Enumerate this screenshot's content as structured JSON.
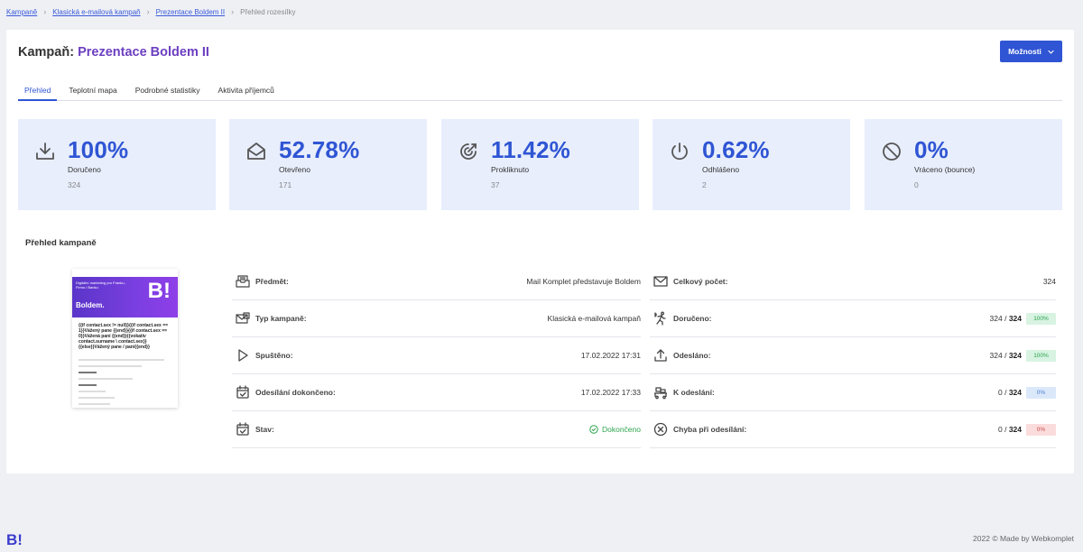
{
  "breadcrumb": {
    "items": [
      "Kampaně",
      "Klasická e-mailová kampaň",
      "Prezentace Boldem II"
    ],
    "current": "Přehled rozesílky"
  },
  "header": {
    "title_prefix": "Kampaň:",
    "campaign_name": "Prezentace Boldem II",
    "options_label": "Možnosti"
  },
  "tabs": [
    {
      "label": "Přehled",
      "active": true
    },
    {
      "label": "Teplotní mapa",
      "active": false
    },
    {
      "label": "Podrobné statistiky",
      "active": false
    },
    {
      "label": "Aktivita příjemců",
      "active": false
    }
  ],
  "stats": [
    {
      "icon": "download-icon",
      "percent": "100%",
      "label": "Doručeno",
      "count": "324"
    },
    {
      "icon": "envelope-open-icon",
      "percent": "52.78%",
      "label": "Otevřeno",
      "count": "171"
    },
    {
      "icon": "target-click-icon",
      "percent": "11.42%",
      "label": "Prokliknuto",
      "count": "37"
    },
    {
      "icon": "power-icon",
      "percent": "0.62%",
      "label": "Odhlášeno",
      "count": "2"
    },
    {
      "icon": "block-icon",
      "percent": "0%",
      "label": "Vráceno (bounce)",
      "count": "0"
    }
  ],
  "overview": {
    "section_title": "Přehled kampaně",
    "preview": {
      "banner_text": "Digitální marketing pro Franku, Firmu i Banku",
      "brand": "Boldem.",
      "logo": "B!",
      "body": "{{if contact.sex != null}}{{if contact.sex == 1}}Vážený pane {{end}}{{if contact.sex == 0}}Vážená paní {{end}}{{vokativ contact.surname \\ contact.sex}}{{else}}Vážený pane / paní{{end}}"
    },
    "left_rows": [
      {
        "icon": "envelope-tray-icon",
        "label": "Předmět:",
        "value": "Mail Komplet představuje Boldem"
      },
      {
        "icon": "envelope-card-icon",
        "label": "Typ kampaně:",
        "value": "Klasická e-mailová kampaň"
      },
      {
        "icon": "play-icon",
        "label": "Spuštěno:",
        "value": "17.02.2022 17:31"
      },
      {
        "icon": "calendar-check-icon",
        "label": "Odesílání dokončeno:",
        "value": "17.02.2022 17:33"
      },
      {
        "icon": "calendar-check-icon",
        "label": "Stav:",
        "value": "Dokončeno"
      }
    ],
    "right_rows": [
      {
        "icon": "envelope-icon",
        "label": "Celkový počet:",
        "value": "324",
        "total": "",
        "badge": ""
      },
      {
        "icon": "runner-icon",
        "label": "Doručeno:",
        "value": "324 / ",
        "total": "324",
        "badge": "100%",
        "badge_color": "green"
      },
      {
        "icon": "upload-icon",
        "label": "Odesláno:",
        "value": "324 / ",
        "total": "324",
        "badge": "100%",
        "badge_color": "green"
      },
      {
        "icon": "cart-queue-icon",
        "label": "K odeslání:",
        "value": "0 / ",
        "total": "324",
        "badge": "0%",
        "badge_color": "blue"
      },
      {
        "icon": "circle-x-icon",
        "label": "Chyba při odesílání:",
        "value": "0 / ",
        "total": "324",
        "badge": "0%",
        "badge_color": "red"
      }
    ]
  },
  "footer": {
    "logo": "B!",
    "text": "2022 © Made by Webkomplet"
  },
  "colors": {
    "accent": "#2f55d4",
    "campaign_name": "#6c3fc0",
    "stat_bg": "#e8eefc",
    "success": "#2da44e"
  }
}
